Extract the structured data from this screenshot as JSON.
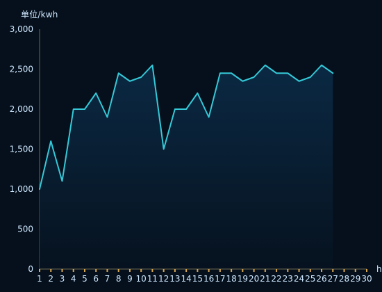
{
  "chart_data": {
    "type": "area",
    "ylabel": "单位/kwh",
    "xlabel": "h",
    "ylim": [
      0,
      3000
    ],
    "y_ticks": [
      "0",
      "500",
      "1,000",
      "1,500",
      "2,000",
      "2,500",
      "3,000"
    ],
    "y_tick_values": [
      0,
      500,
      1000,
      1500,
      2000,
      2500,
      3000
    ],
    "x_ticks": [
      "1",
      "2",
      "3",
      "4",
      "5",
      "6",
      "7",
      "8",
      "9",
      "10",
      "11",
      "12",
      "13",
      "14",
      "15",
      "16",
      "17",
      "18",
      "19",
      "20",
      "21",
      "22",
      "23",
      "24",
      "25",
      "26",
      "27",
      "28",
      "29",
      "30"
    ],
    "grid": false,
    "series": [
      {
        "x": [
          1,
          2,
          3,
          4,
          5,
          6,
          7,
          8,
          9,
          10,
          11,
          12,
          13,
          14,
          15,
          16,
          17,
          18,
          19,
          20,
          21,
          22,
          23,
          24,
          25,
          26,
          27
        ],
        "values": [
          1000,
          1600,
          1100,
          2000,
          2000,
          2200,
          1900,
          2450,
          2350,
          2400,
          2550,
          1500,
          2000,
          2000,
          2200,
          1900,
          2450,
          2450,
          2350,
          2400,
          2550,
          2450,
          2450,
          2350,
          2400,
          2550,
          2450
        ]
      }
    ],
    "colors": {
      "background": "#06101c",
      "line": "#35c9d8",
      "area_top": "#0b2a45",
      "area_bottom": "#06121f",
      "axis": "#6f6a52",
      "tick_mark": "#d8a653",
      "tick_label": "#cfe8ff"
    }
  }
}
